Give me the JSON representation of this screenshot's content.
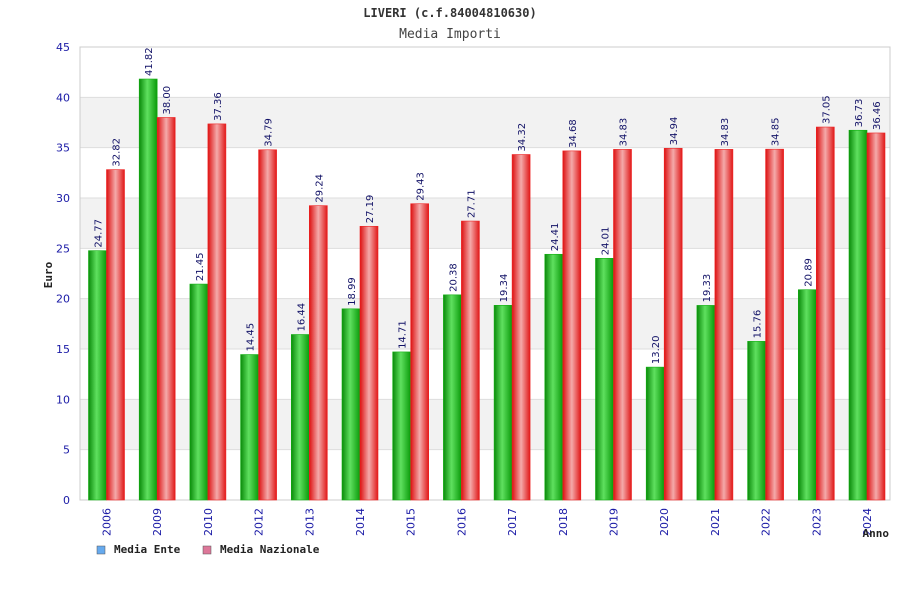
{
  "colors": {
    "ente": "#11b011",
    "ente_light": "#7fe07f",
    "nazionale": "#ee2222",
    "nazionale_light": "#f5b0b0",
    "grid_band": "#f2f2f2",
    "axis_text": "#1a1aa6",
    "legend_ente": "#66aaee",
    "legend_nazionale": "#dd7799"
  },
  "chart_data": {
    "type": "bar",
    "title": "LIVERI (c.f.84004810630)",
    "subtitle": "Media Importi",
    "xlabel": "Anno",
    "ylabel": "Euro",
    "ylim": [
      0,
      45
    ],
    "yticks": [
      "0",
      "5",
      "10",
      "15",
      "20",
      "25",
      "30",
      "35",
      "40",
      "45"
    ],
    "grid": true,
    "legend_position": "bottom-left",
    "categories": [
      "2006",
      "2009",
      "2010",
      "2012",
      "2013",
      "2014",
      "2015",
      "2016",
      "2017",
      "2018",
      "2019",
      "2020",
      "2021",
      "2022",
      "2023",
      "2024"
    ],
    "series": [
      {
        "name": "Media Ente",
        "values": [
          24.77,
          41.82,
          21.45,
          14.45,
          16.44,
          18.99,
          14.71,
          20.38,
          19.34,
          24.41,
          24.01,
          13.2,
          19.33,
          15.76,
          20.89,
          36.73
        ],
        "labels": [
          "24.77",
          "41.82",
          "21.45",
          "14.45",
          "16.44",
          "18.99",
          "14.71",
          "20.38",
          "19.34",
          "24.41",
          "24.01",
          "13.20",
          "19.33",
          "15.76",
          "20.89",
          "36.73"
        ]
      },
      {
        "name": "Media Nazionale",
        "values": [
          32.82,
          38.0,
          37.36,
          34.79,
          29.24,
          27.19,
          29.43,
          27.71,
          34.32,
          34.68,
          34.83,
          34.94,
          34.83,
          34.85,
          37.05,
          36.46
        ],
        "labels": [
          "32.82",
          "38.00",
          "37.36",
          "34.79",
          "29.24",
          "27.19",
          "29.43",
          "27.71",
          "34.32",
          "34.68",
          "34.83",
          "34.94",
          "34.83",
          "34.85",
          "37.05",
          "36.46"
        ]
      }
    ]
  }
}
